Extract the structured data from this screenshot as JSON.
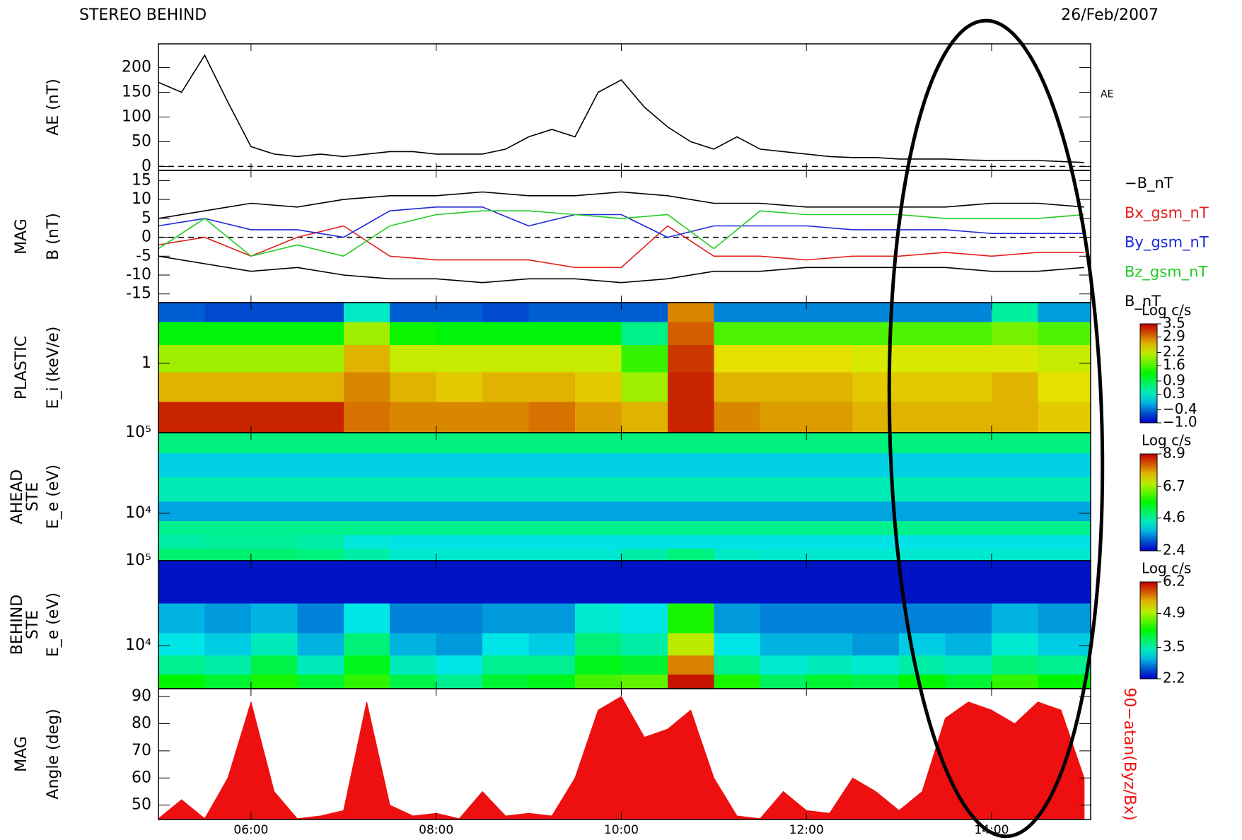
{
  "title": "STEREO BEHIND",
  "date": "26/Feb/2007",
  "chart_data": [
    {
      "type": "line",
      "ylabel": [
        "AE (nT)"
      ],
      "xlim": [
        5,
        15.07
      ],
      "ylim": [
        -8,
        248
      ],
      "yticks": [
        0,
        50,
        100,
        150,
        200
      ],
      "zero_line": true,
      "x": [
        5,
        5.25,
        5.5,
        5.75,
        6,
        6.25,
        6.5,
        6.75,
        7,
        7.25,
        7.5,
        7.75,
        8,
        8.25,
        8.5,
        8.75,
        9,
        9.25,
        9.5,
        9.75,
        10,
        10.25,
        10.5,
        10.75,
        11,
        11.25,
        11.5,
        11.75,
        12,
        12.25,
        12.5,
        12.75,
        13,
        13.25,
        13.5,
        13.75,
        14,
        14.25,
        14.5,
        14.75,
        15
      ],
      "series": [
        {
          "name": "AE",
          "color": "#000000",
          "values": [
            170,
            150,
            225,
            130,
            40,
            25,
            20,
            25,
            20,
            25,
            30,
            30,
            25,
            25,
            25,
            35,
            60,
            75,
            60,
            150,
            175,
            120,
            80,
            50,
            35,
            60,
            35,
            30,
            25,
            20,
            18,
            18,
            15,
            15,
            15,
            13,
            12,
            12,
            12,
            10,
            8
          ]
        }
      ]
    },
    {
      "type": "line",
      "ylabel": [
        "MAG",
        "B (nT)"
      ],
      "xlim": [
        5,
        15.07
      ],
      "ylim": [
        -17.3,
        17.7
      ],
      "yticks": [
        -15,
        -10,
        -5,
        0,
        5,
        10,
        15
      ],
      "zero_line": true,
      "x": [
        5,
        5.5,
        6,
        6.5,
        7,
        7.5,
        8,
        8.5,
        9,
        9.5,
        10,
        10.5,
        11,
        11.5,
        12,
        12.5,
        13,
        13.5,
        14,
        14.5,
        15
      ],
      "series": [
        {
          "name": "−B_nT",
          "color": "#000000",
          "values": [
            -5,
            -7,
            -9,
            -8,
            -10,
            -11,
            -11,
            -12,
            -11,
            -11,
            -12,
            -11,
            -9,
            -9,
            -8,
            -8,
            -8,
            -8,
            -9,
            -9,
            -8
          ]
        },
        {
          "name": "Bx_gsm_nT",
          "color": "#e0201c",
          "values": [
            -2,
            0,
            -5,
            0,
            3,
            -5,
            -6,
            -6,
            -6,
            -8,
            -8,
            3,
            -5,
            -5,
            -6,
            -5,
            -5,
            -4,
            -5,
            -4,
            -4
          ]
        },
        {
          "name": "By_gsm_nT",
          "color": "#1c2ad8",
          "values": [
            3,
            5,
            2,
            2,
            0,
            7,
            8,
            8,
            3,
            6,
            6,
            0,
            3,
            3,
            3,
            2,
            2,
            2,
            1,
            1,
            1
          ]
        },
        {
          "name": "Bz_gsm_nT",
          "color": "#22cc22",
          "values": [
            -3,
            5,
            -5,
            -2,
            -5,
            3,
            6,
            7,
            7,
            6,
            5,
            6,
            -3,
            7,
            6,
            6,
            6,
            5,
            5,
            5,
            6
          ]
        },
        {
          "name": "B_nT",
          "color": "#000000",
          "values": [
            5,
            7,
            9,
            8,
            10,
            11,
            11,
            12,
            11,
            11,
            12,
            11,
            9,
            9,
            8,
            8,
            8,
            8,
            9,
            9,
            8
          ]
        }
      ]
    },
    {
      "type": "heatmap",
      "ylabel": [
        "PLASTIC",
        "E_i (keV/e)"
      ],
      "xlim": [
        5,
        15.07
      ],
      "log_y": true,
      "ylim": [
        0.35,
        2.5
      ],
      "yticks": [
        1
      ],
      "colormap": "rainbow",
      "x": [
        5.25,
        5.75,
        6.25,
        6.75,
        7.25,
        7.75,
        8.25,
        8.75,
        9.25,
        9.75,
        10.25,
        10.75,
        11.25,
        11.75,
        12.25,
        12.75,
        13.25,
        13.75,
        14.25,
        14.75
      ],
      "y": [
        0.45,
        0.7,
        1.1,
        1.6,
        2.2
      ],
      "z": [
        [
          3.3,
          3.3,
          3.3,
          3.3,
          2.9,
          2.8,
          2.8,
          2.8,
          2.9,
          2.7,
          2.6,
          3.3,
          2.8,
          2.7,
          2.7,
          2.6,
          2.6,
          2.6,
          2.6,
          2.5
        ],
        [
          2.6,
          2.6,
          2.6,
          2.6,
          2.8,
          2.6,
          2.5,
          2.6,
          2.6,
          2.5,
          2.0,
          3.3,
          2.6,
          2.6,
          2.6,
          2.5,
          2.5,
          2.5,
          2.6,
          2.4
        ],
        [
          2.0,
          2.0,
          2.0,
          2.0,
          2.6,
          2.2,
          2.2,
          2.2,
          2.2,
          2.2,
          1.5,
          3.2,
          2.4,
          2.4,
          2.4,
          2.3,
          2.3,
          2.3,
          2.3,
          2.2
        ],
        [
          1.2,
          1.2,
          1.2,
          1.2,
          2.0,
          1.3,
          1.2,
          1.2,
          1.2,
          1.2,
          0.6,
          3.0,
          1.6,
          1.6,
          1.6,
          1.6,
          1.6,
          1.6,
          1.8,
          1.6
        ],
        [
          -0.5,
          -0.6,
          -0.6,
          -0.6,
          0.3,
          -0.5,
          -0.5,
          -0.6,
          -0.5,
          -0.5,
          -0.5,
          2.8,
          -0.3,
          -0.3,
          -0.3,
          -0.3,
          -0.3,
          -0.3,
          0.5,
          -0.2
        ]
      ],
      "colorbar": {
        "title": "Log c/s",
        "ticks": [
          {
            "value": -1.0,
            "label": "−1.0"
          },
          {
            "value": -0.4,
            "label": "−0.4"
          },
          0.3,
          0.9,
          1.6,
          2.2,
          2.9,
          3.5
        ]
      }
    },
    {
      "type": "heatmap",
      "ylabel": [
        "AHEAD",
        "STE",
        "E_e (eV)"
      ],
      "xlim": [
        5,
        15.07
      ],
      "log_y": true,
      "ylim": [
        2580,
        100000
      ],
      "yticks": [
        {
          "value": 10000,
          "label": "10⁴"
        },
        {
          "value": 100000,
          "label": "10⁵"
        }
      ],
      "colormap": "rainbow",
      "x": [
        5.25,
        5.75,
        6.25,
        6.75,
        7.25,
        7.75,
        8.25,
        8.75,
        9.25,
        9.75,
        10.25,
        10.75,
        11.25,
        11.75,
        12.25,
        12.75,
        13.25,
        13.75,
        14.25,
        14.75
      ],
      "y": [
        3000,
        4500,
        6500,
        10000,
        20000,
        40000,
        80000
      ],
      "z": [
        [
          4.9,
          4.9,
          4.9,
          4.8,
          4.5,
          4.2,
          4.2,
          4.2,
          4.2,
          4.2,
          4.5,
          4.8,
          4.3,
          4.2,
          4.2,
          4.2,
          4.2,
          4.2,
          4.2,
          4.2
        ],
        [
          4.5,
          4.6,
          4.6,
          4.5,
          4.1,
          4.0,
          4.0,
          4.0,
          4.0,
          4.0,
          4.0,
          4.0,
          4.0,
          4.0,
          4.0,
          4.0,
          4.0,
          4.0,
          4.0,
          4.0
        ],
        [
          4.7,
          4.7,
          4.7,
          4.7,
          4.7,
          4.7,
          4.7,
          4.7,
          4.7,
          4.7,
          4.7,
          4.7,
          4.7,
          4.7,
          4.7,
          4.7,
          4.7,
          4.7,
          4.7,
          4.7
        ],
        [
          3.6,
          3.6,
          3.6,
          3.6,
          3.6,
          3.6,
          3.6,
          3.6,
          3.6,
          3.6,
          3.6,
          3.6,
          3.6,
          3.6,
          3.6,
          3.6,
          3.6,
          3.6,
          3.6,
          3.6
        ],
        [
          4.4,
          4.4,
          4.4,
          4.4,
          4.4,
          4.4,
          4.4,
          4.4,
          4.4,
          4.4,
          4.4,
          4.4,
          4.4,
          4.4,
          4.4,
          4.4,
          4.4,
          4.4,
          4.4,
          4.4
        ],
        [
          3.9,
          3.9,
          3.9,
          3.9,
          3.9,
          3.9,
          3.9,
          3.9,
          3.9,
          3.9,
          3.9,
          3.9,
          3.9,
          3.9,
          3.9,
          3.9,
          3.9,
          3.9,
          3.9,
          3.9
        ],
        [
          4.8,
          4.8,
          4.8,
          4.8,
          4.8,
          4.8,
          4.8,
          4.8,
          4.8,
          4.8,
          4.8,
          4.8,
          4.8,
          4.8,
          4.8,
          4.8,
          4.8,
          4.8,
          4.8,
          4.8
        ]
      ],
      "colorbar": {
        "title": "Log c/s",
        "ticks": [
          2.4,
          4.6,
          6.7,
          8.9
        ]
      }
    },
    {
      "type": "heatmap",
      "ylabel": [
        "BEHIND",
        "STE",
        "E_e (eV)"
      ],
      "xlim": [
        5,
        15.07
      ],
      "log_y": true,
      "ylim": [
        3100,
        100000
      ],
      "yticks": [
        {
          "value": 10000,
          "label": "10⁴"
        },
        {
          "value": 100000,
          "label": "10⁵"
        }
      ],
      "colormap": "rainbow",
      "x": [
        5.25,
        5.75,
        6.25,
        6.75,
        7.25,
        7.75,
        8.25,
        8.75,
        9.25,
        9.75,
        10.25,
        10.75,
        11.25,
        11.75,
        12.25,
        12.75,
        13.25,
        13.75,
        14.25,
        14.75
      ],
      "y": [
        3500,
        6000,
        10000,
        20000,
        50000
      ],
      "z": [
        [
          4.2,
          4.0,
          4.3,
          4.0,
          4.4,
          3.9,
          3.6,
          4.0,
          4.1,
          4.5,
          4.6,
          6.1,
          4.3,
          3.8,
          4.0,
          3.9,
          4.2,
          4.0,
          4.4,
          4.2
        ],
        [
          3.6,
          3.5,
          3.9,
          3.4,
          4.1,
          3.4,
          3.2,
          3.6,
          3.6,
          4.1,
          4.0,
          5.6,
          3.6,
          3.3,
          3.4,
          3.3,
          3.5,
          3.4,
          3.7,
          3.6
        ],
        [
          3.2,
          3.1,
          3.4,
          3.0,
          3.7,
          3.0,
          2.9,
          3.2,
          3.1,
          3.7,
          3.5,
          5.0,
          3.2,
          3.0,
          3.0,
          2.9,
          3.1,
          3.0,
          3.3,
          3.1
        ],
        [
          3.0,
          2.9,
          3.0,
          2.8,
          3.2,
          2.8,
          2.8,
          2.9,
          2.9,
          3.3,
          3.2,
          4.3,
          2.9,
          2.8,
          2.8,
          2.8,
          2.8,
          2.8,
          3.0,
          2.9
        ],
        [
          2.3,
          2.3,
          2.3,
          2.3,
          2.3,
          2.3,
          2.3,
          2.3,
          2.3,
          2.3,
          2.3,
          2.3,
          2.3,
          2.3,
          2.3,
          2.3,
          2.3,
          2.3,
          2.3,
          2.3
        ]
      ],
      "colorbar": {
        "title": "Log c/s",
        "ticks": [
          2.2,
          3.5,
          4.9,
          6.2
        ]
      }
    },
    {
      "type": "area",
      "ylabel": [
        "MAG",
        "Angle (deg)"
      ],
      "xlim": [
        5,
        15.07
      ],
      "ylim": [
        44.7,
        92.9
      ],
      "yticks": [
        50,
        60,
        70,
        80,
        90
      ],
      "xticks": [
        {
          "value": 6,
          "label": "06:00"
        },
        {
          "value": 8,
          "label": "08:00"
        },
        {
          "value": 10,
          "label": "10:00"
        },
        {
          "value": 12,
          "label": "12:00"
        },
        {
          "value": 14,
          "label": "14:00"
        }
      ],
      "x": [
        5,
        5.25,
        5.5,
        5.75,
        6,
        6.25,
        6.5,
        6.75,
        7,
        7.25,
        7.5,
        7.75,
        8,
        8.25,
        8.5,
        8.75,
        9,
        9.25,
        9.5,
        9.75,
        10,
        10.25,
        10.5,
        10.75,
        11,
        11.25,
        11.5,
        11.75,
        12,
        12.25,
        12.5,
        12.75,
        13,
        13.25,
        13.5,
        13.75,
        14,
        14.25,
        14.5,
        14.75,
        15
      ],
      "series": [
        {
          "name": "90−atan(Byz/Bx)",
          "color": "#ee1010",
          "values": [
            45,
            52,
            45,
            60,
            88,
            55,
            45,
            46,
            48,
            88,
            50,
            46,
            47,
            45,
            55,
            46,
            47,
            46,
            60,
            85,
            90,
            75,
            78,
            85,
            60,
            46,
            45,
            55,
            48,
            47,
            60,
            55,
            48,
            55,
            82,
            88,
            85,
            80,
            88,
            85,
            60
          ]
        }
      ]
    }
  ]
}
